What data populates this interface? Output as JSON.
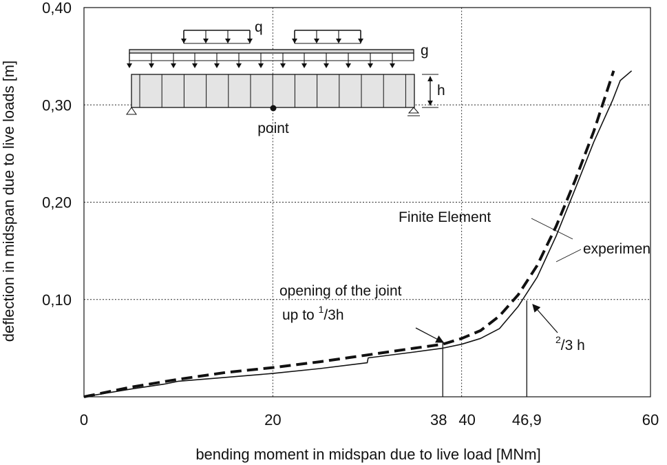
{
  "chart_data": {
    "type": "line",
    "title": "",
    "xlabel": "bending moment in midspan due to live load [MNm]",
    "ylabel": "deflection in midspan due to live loads [m]",
    "xlim": [
      0,
      60
    ],
    "ylim": [
      0,
      0.4
    ],
    "grid": true,
    "x_ticks": [
      {
        "value": 0,
        "label": "0"
      },
      {
        "value": 20,
        "label": "20"
      },
      {
        "value": 38,
        "label": "38"
      },
      {
        "value": 40,
        "label": "40"
      },
      {
        "value": 46.9,
        "label": "46,9"
      },
      {
        "value": 60,
        "label": "60"
      }
    ],
    "x_grid": [
      20,
      40
    ],
    "y_ticks": [
      {
        "value": 0.1,
        "label": "0,10"
      },
      {
        "value": 0.2,
        "label": "0,20"
      },
      {
        "value": 0.3,
        "label": "0,30"
      },
      {
        "value": 0.4,
        "label": "0,40"
      }
    ],
    "y_grid": [
      0.1,
      0.2,
      0.3
    ],
    "series": [
      {
        "name": "Finite Element",
        "style": "dashed",
        "x": [
          0,
          5,
          10,
          15,
          20,
          25,
          30,
          35,
          38,
          40,
          42,
          44,
          46,
          48,
          50,
          52,
          54,
          56.1
        ],
        "y": [
          0,
          0.01,
          0.018,
          0.025,
          0.03,
          0.036,
          0.043,
          0.05,
          0.054,
          0.06,
          0.068,
          0.083,
          0.105,
          0.135,
          0.175,
          0.222,
          0.273,
          0.335
        ]
      },
      {
        "name": "experiment",
        "style": "solid",
        "x": [
          0,
          5,
          8.5,
          10,
          15,
          20,
          25,
          30,
          30.1,
          35,
          38,
          40,
          42,
          44,
          46,
          48,
          50,
          52,
          54,
          56,
          56.8,
          58
        ],
        "y": [
          0,
          0.008,
          0.013,
          0.016,
          0.02,
          0.024,
          0.029,
          0.035,
          0.04,
          0.046,
          0.05,
          0.054,
          0.06,
          0.07,
          0.093,
          0.123,
          0.165,
          0.213,
          0.262,
          0.305,
          0.325,
          0.335
        ]
      }
    ],
    "markers": [
      {
        "x": 38,
        "y_top": 0.057
      },
      {
        "x": 46.9,
        "y_top": 0.099
      }
    ],
    "annotations": {
      "fe_label": "Finite Element",
      "exp_label": "experimen",
      "joint_line1": "opening of the joint",
      "joint_up": "up to ",
      "joint_sup": "1",
      "joint_sub": "/3h",
      "two_thirds_sup": "2",
      "two_thirds_sub": "/3 h"
    },
    "schematic": {
      "q_label": "q",
      "g_label": "g",
      "h_label": "h",
      "point_label": "point"
    }
  }
}
